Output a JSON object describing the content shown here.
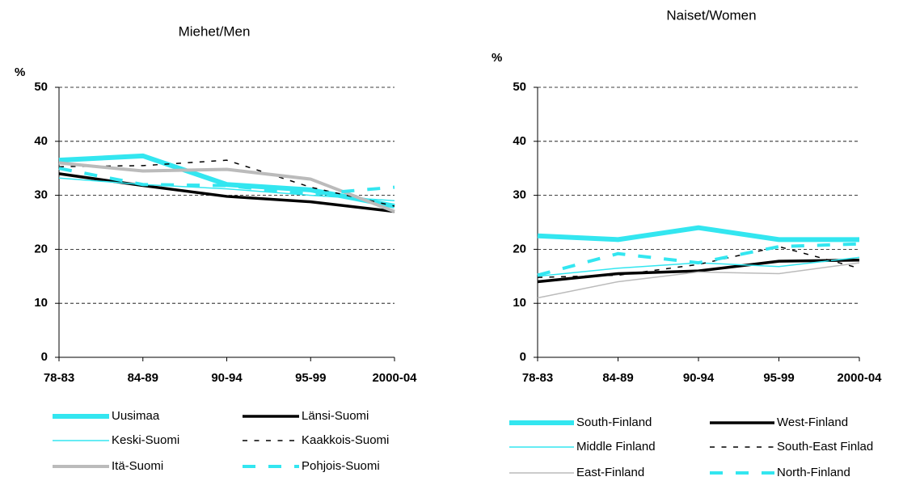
{
  "chart_data": [
    {
      "type": "line",
      "title": "Miehet/Men",
      "y_label": "%",
      "categories": [
        "78-83",
        "84-89",
        "90-94",
        "95-99",
        "2000-04"
      ],
      "ylim": [
        0,
        50
      ],
      "yticks": [
        0,
        10,
        20,
        30,
        40,
        50
      ],
      "grid": true,
      "series": [
        {
          "name": "Uusimaa",
          "color": "#33e6f0",
          "line_width": 6,
          "dash": "solid",
          "values": [
            36.5,
            37.3,
            32,
            31,
            28
          ]
        },
        {
          "name": "Länsi-Suomi",
          "color": "#000000",
          "line_width": 3.5,
          "dash": "solid",
          "values": [
            34,
            31.8,
            29.8,
            28.8,
            27
          ]
        },
        {
          "name": "Keski-Suomi",
          "color": "#33e6f0",
          "line_width": 1.5,
          "dash": "solid",
          "values": [
            33.2,
            32,
            31.2,
            30,
            29
          ]
        },
        {
          "name": "Kaakkois-Suomi",
          "color": "#000000",
          "line_width": 1.5,
          "dash": "dashed",
          "values": [
            35.3,
            35.5,
            36.5,
            31.5,
            28
          ]
        },
        {
          "name": "Itä-Suomi",
          "color": "#bbbbbb",
          "line_width": 4,
          "dash": "solid",
          "values": [
            36,
            34.5,
            34.8,
            33,
            27
          ]
        },
        {
          "name": "Pohjois-Suomi",
          "color": "#33e6f0",
          "line_width": 4,
          "dash": "dashed",
          "values": [
            35,
            32,
            31.8,
            30.2,
            31.5
          ]
        }
      ]
    },
    {
      "type": "line",
      "title": "Naiset/Women",
      "y_label": "%",
      "categories": [
        "78-83",
        "84-89",
        "90-94",
        "95-99",
        "2000-04"
      ],
      "ylim": [
        0,
        50
      ],
      "yticks": [
        0,
        10,
        20,
        30,
        40,
        50
      ],
      "grid": true,
      "series": [
        {
          "name": "South-Finland",
          "color": "#33e6f0",
          "line_width": 6,
          "dash": "solid",
          "values": [
            22.5,
            21.8,
            24,
            21.8,
            21.8
          ]
        },
        {
          "name": "West-Finland",
          "color": "#000000",
          "line_width": 3.5,
          "dash": "solid",
          "values": [
            14,
            15.5,
            16,
            17.8,
            18
          ]
        },
        {
          "name": "Middle Finland",
          "color": "#33e6f0",
          "line_width": 1.5,
          "dash": "solid",
          "values": [
            15,
            16.5,
            17.5,
            16.8,
            18.5
          ]
        },
        {
          "name": "South-East Finlad",
          "color": "#000000",
          "line_width": 1.5,
          "dash": "dashed",
          "values": [
            14.8,
            15.2,
            17.2,
            20.5,
            16.5
          ]
        },
        {
          "name": "East-Finland",
          "color": "#bbbbbb",
          "line_width": 1.5,
          "dash": "solid",
          "values": [
            11,
            14,
            15.8,
            15.5,
            17.5
          ]
        },
        {
          "name": "North-Finland",
          "color": "#33e6f0",
          "line_width": 4,
          "dash": "dashed",
          "values": [
            15.2,
            19.2,
            17.5,
            20.5,
            21
          ]
        }
      ]
    }
  ]
}
